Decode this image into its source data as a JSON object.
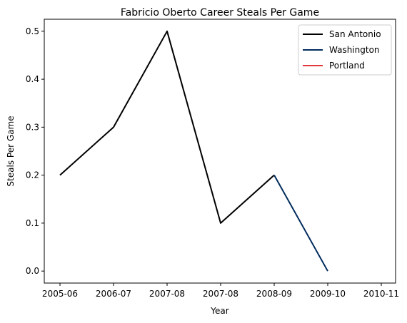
{
  "chart_data": {
    "type": "line",
    "title": "Fabricio Oberto Career Steals Per Game",
    "xlabel": "Year",
    "ylabel": "Steals Per Game",
    "x_tick_labels": [
      "2005-06",
      "2006-07",
      "2007-08",
      "2007-08",
      "2008-09",
      "2009-10",
      "2010-11"
    ],
    "y_ticks": [
      0.0,
      0.1,
      0.2,
      0.3,
      0.4,
      0.5
    ],
    "y_tick_labels": [
      "0.0",
      "0.1",
      "0.2",
      "0.3",
      "0.4",
      "0.5"
    ],
    "ylim": [
      -0.025,
      0.525
    ],
    "grid": false,
    "legend_position": "top-right",
    "series": [
      {
        "name": "San Antonio",
        "color": "#000000",
        "x_index": [
          0,
          1,
          2,
          3,
          4
        ],
        "values": [
          0.2,
          0.3,
          0.5,
          0.1,
          0.2
        ]
      },
      {
        "name": "Washington",
        "color": "#002b5c",
        "x_index": [
          4,
          5
        ],
        "values": [
          0.2,
          0.0
        ]
      },
      {
        "name": "Portland",
        "color": "#e03a3e",
        "x_index": [],
        "values": []
      }
    ]
  }
}
